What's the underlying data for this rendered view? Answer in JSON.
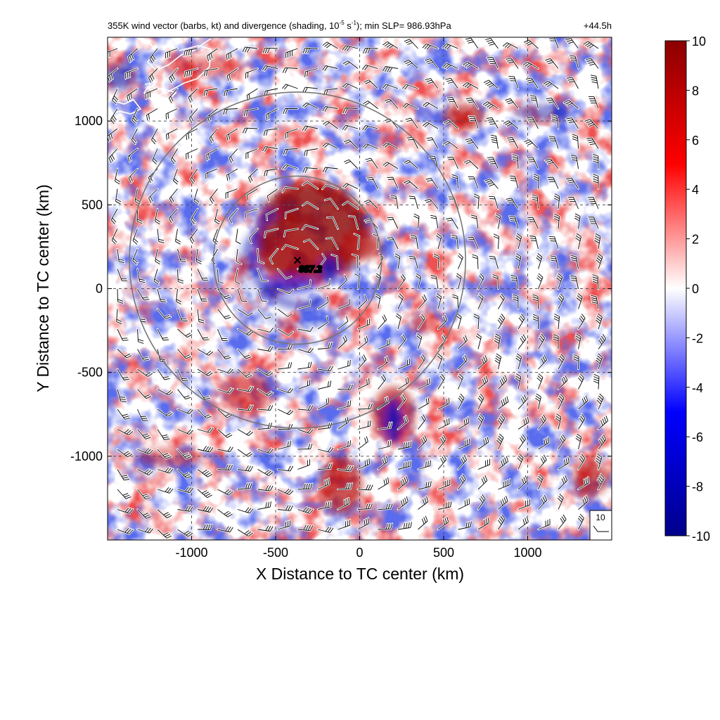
{
  "chart_data": {
    "type": "heatmap",
    "title": {
      "main": "355K wind vector (barbs, kt) and divergence (shading, 10",
      "exp": "-5",
      "unit": " s",
      "unit_exp": "-1",
      "rest": "); min SLP= 986.93hPa"
    },
    "time_label": "+44.5h",
    "xlabel": "X Distance to TC center (km)",
    "ylabel": "Y Distance to TC center (km)",
    "xlim": [
      -1500,
      1500
    ],
    "ylim": [
      -1500,
      1500
    ],
    "x_ticks": [
      -1000,
      -500,
      0,
      500,
      1000
    ],
    "y_ticks": [
      -1000,
      -500,
      0,
      500,
      1000
    ],
    "x_tick_labels": [
      "-1000",
      "-500",
      "0",
      "500",
      "1000"
    ],
    "y_tick_labels": [
      "-1000",
      "-500",
      "0",
      "500",
      "1000"
    ],
    "grid": true,
    "colorbar": {
      "min": -10,
      "max": 10,
      "ticks": [
        10,
        8,
        6,
        4,
        2,
        0,
        -2,
        -4,
        -6,
        -8,
        -10
      ],
      "tick_labels": [
        "10",
        "8",
        "6",
        "4",
        "2",
        "0",
        "-2",
        "-4",
        "-6",
        "-8",
        "-10"
      ],
      "colors": [
        "#8b0000",
        "#ff0000",
        "#ffffff",
        "#0000ff",
        "#00008b"
      ]
    },
    "center": {
      "x": -370,
      "y": 170,
      "label": "987.2"
    },
    "rings_km": [
      500,
      1000
    ],
    "reference_barb_label": "10"
  }
}
